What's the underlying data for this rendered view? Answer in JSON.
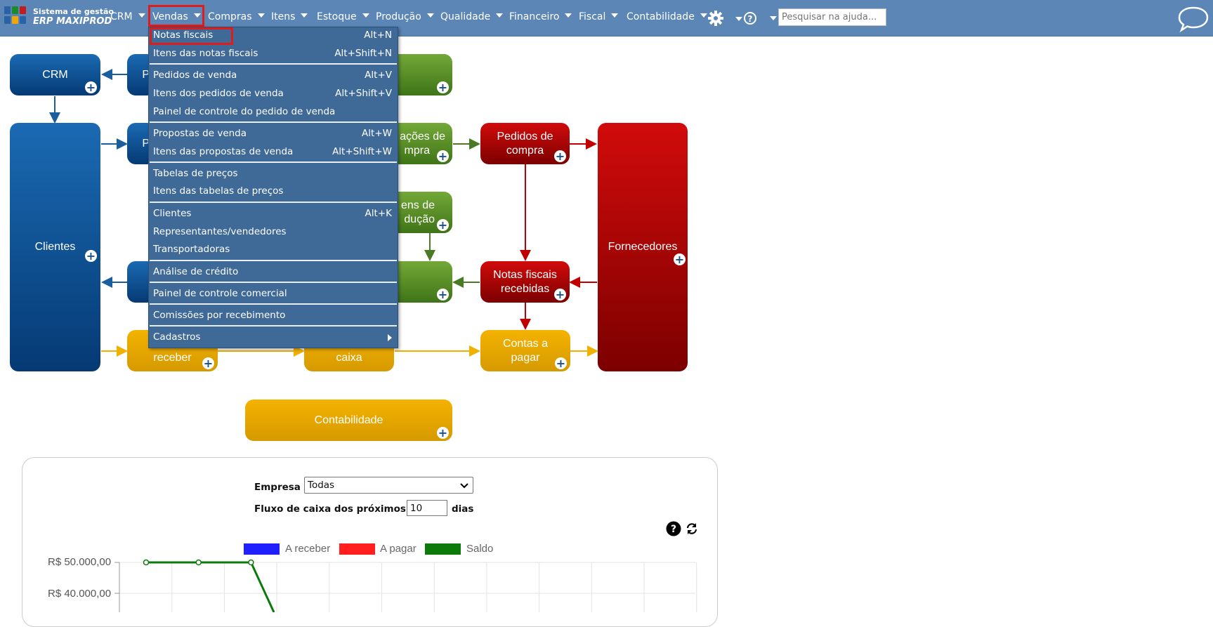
{
  "app": {
    "logo_line1": "Sistema de gestão",
    "logo_line2": "ERP MAXIPROD"
  },
  "nav": {
    "items": [
      "CRM",
      "Vendas",
      "Compras",
      "Itens",
      "Estoque",
      "Produção",
      "Qualidade",
      "Financeiro",
      "Fiscal",
      "Contabilidade"
    ],
    "active": "Vendas",
    "search_placeholder": "Pesquisar na ajuda..."
  },
  "menu": {
    "items": [
      {
        "label": "Notas fiscais",
        "shortcut": "Alt+N"
      },
      {
        "label": "Itens das notas fiscais",
        "shortcut": "Alt+Shift+N"
      },
      {
        "label": "Pedidos de venda",
        "shortcut": "Alt+V"
      },
      {
        "label": "Itens dos pedidos de venda",
        "shortcut": "Alt+Shift+V"
      },
      {
        "label": "Painel de controle do pedido de venda",
        "shortcut": ""
      },
      {
        "label": "Propostas de venda",
        "shortcut": "Alt+W"
      },
      {
        "label": "Itens das propostas de venda",
        "shortcut": "Alt+Shift+W"
      },
      {
        "label": "Tabelas de preços",
        "shortcut": ""
      },
      {
        "label": "Itens das tabelas de preços",
        "shortcut": ""
      },
      {
        "label": "Clientes",
        "shortcut": "Alt+K"
      },
      {
        "label": "Representantes/vendedores",
        "shortcut": ""
      },
      {
        "label": "Transportadoras",
        "shortcut": ""
      },
      {
        "label": "Análise de crédito",
        "shortcut": ""
      },
      {
        "label": "Painel de controle comercial",
        "shortcut": ""
      },
      {
        "label": "Comissões por recebimento",
        "shortcut": ""
      },
      {
        "label": "Cadastros",
        "shortcut": ""
      }
    ]
  },
  "diagram": {
    "crm": "CRM",
    "clientes": "Clientes",
    "p_partial_top": "P",
    "p_partial_mid": "P",
    "cotacoes_partial_1": "ações de",
    "cotacoes_partial_2": "mpra",
    "pedidos_compra_1": "Pedidos de",
    "pedidos_compra_2": "compra",
    "fornecedores": "Fornecedores",
    "producao_partial_1": "ens de",
    "producao_partial_2": "dução",
    "nf_recebidas_1": "Notas fiscais",
    "nf_recebidas_2": "recebidas",
    "receber": "receber",
    "caixa": "caixa",
    "contas_pagar_1": "Contas a",
    "contas_pagar_2": "pagar",
    "contabilidade": "Contabilidade"
  },
  "cashflow": {
    "empresa_label": "Empresa",
    "empresa_value": "Todas",
    "fluxo_label": "Fluxo de caixa dos próximos",
    "days_value": "10",
    "dias_label": "dias",
    "help_icon": "question-circle-icon",
    "refresh_icon": "refresh-icon"
  },
  "chart_data": {
    "type": "line",
    "series": [
      {
        "name": "A receber",
        "color": "#1f1fff",
        "values": []
      },
      {
        "name": "A pagar",
        "color": "#ff1f1f",
        "values": []
      },
      {
        "name": "Saldo",
        "color": "#0a7a0a",
        "values": [
          50000,
          50000,
          50000
        ]
      }
    ],
    "y_tick_labels": [
      "R$ 50.000,00",
      "R$ 40.000,00"
    ],
    "y_ticks": [
      50000,
      40000
    ],
    "grid": true,
    "legend_position": "top"
  }
}
